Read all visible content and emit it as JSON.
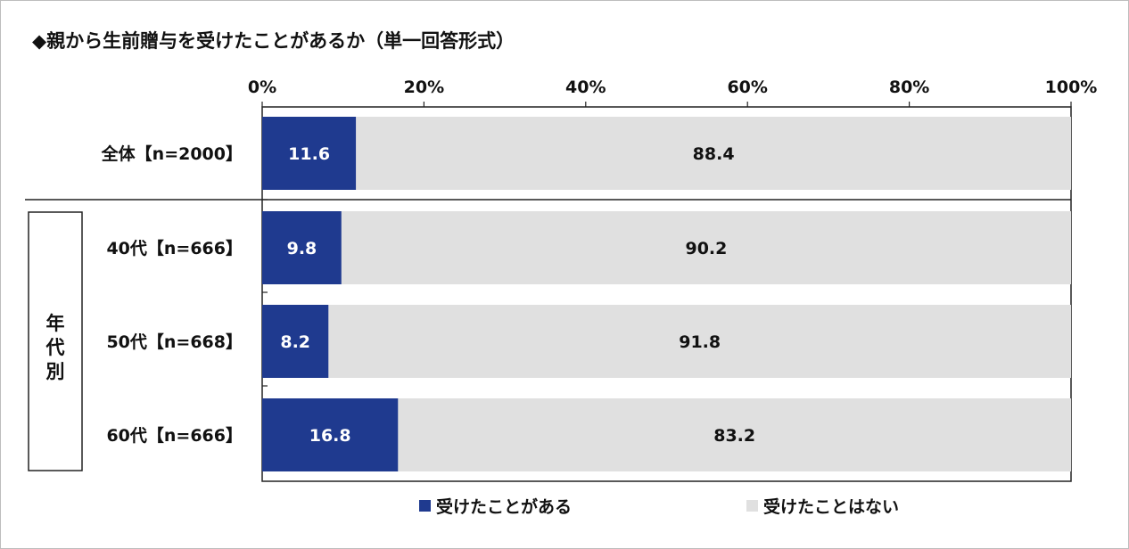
{
  "chart_data": {
    "type": "bar",
    "orientation": "horizontal",
    "stacked": "percent",
    "title": "◆親から生前贈与を受けたことがあるか（単一回答形式）",
    "xlim": [
      0,
      100
    ],
    "ticks": [
      "0%",
      "20%",
      "40%",
      "60%",
      "80%",
      "100%"
    ],
    "tick_values": [
      0,
      20,
      40,
      60,
      80,
      100
    ],
    "categories": [
      "全体【n=2000】",
      "40代【n=666】",
      "50代【n=668】",
      "60代【n=666】"
    ],
    "group_label": "年代別",
    "series": [
      {
        "name": "受けたことがある",
        "color": "#1f3a8f",
        "values": [
          11.6,
          9.8,
          8.2,
          16.8
        ],
        "labels": [
          "11.6",
          "9.8",
          "8.2",
          "16.8"
        ]
      },
      {
        "name": "受けたことはない",
        "color": "#e0e0e0",
        "values": [
          88.4,
          90.2,
          91.8,
          83.2
        ],
        "labels": [
          "88.4",
          "90.2",
          "91.8",
          "83.2"
        ]
      }
    ],
    "legend_position": "bottom"
  }
}
